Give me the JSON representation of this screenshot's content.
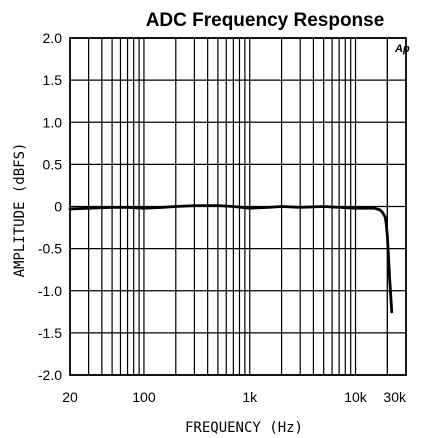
{
  "chart_data": {
    "type": "line",
    "title": "ADC Frequency Response",
    "xlabel": "FREQUENCY (Hz)",
    "ylabel": "AMPLITUDE (dBFS)",
    "x_scale": "log",
    "xlim": [
      20,
      30000
    ],
    "ylim": [
      -2.0,
      2.0
    ],
    "grid": true,
    "x_ticks": [
      {
        "value": 20,
        "label": "20"
      },
      {
        "value": 100,
        "label": "100"
      },
      {
        "value": 1000,
        "label": "1k"
      },
      {
        "value": 10000,
        "label": "10k"
      },
      {
        "value": 30000,
        "label": "30k"
      }
    ],
    "y_ticks": [
      {
        "value": 2.0,
        "label": "2.0"
      },
      {
        "value": 1.5,
        "label": "1.5"
      },
      {
        "value": 1.0,
        "label": "1.0"
      },
      {
        "value": 0.5,
        "label": "0.5"
      },
      {
        "value": 0,
        "label": "0"
      },
      {
        "value": -0.5,
        "label": "-0.5"
      },
      {
        "value": -1.0,
        "label": "-1.0"
      },
      {
        "value": -1.5,
        "label": "-1.5"
      },
      {
        "value": -2.0,
        "label": "-2.0"
      }
    ],
    "series": [
      {
        "color": "#000000",
        "x": [
          20,
          30,
          50,
          70,
          100,
          150,
          200,
          300,
          500,
          700,
          1000,
          1500,
          2000,
          3000,
          5000,
          7000,
          10000,
          12000,
          14000,
          15000,
          16000,
          17000,
          18000,
          19000,
          19500,
          20000,
          20500,
          21000,
          21500,
          22000
        ],
        "y": [
          -0.03,
          -0.02,
          -0.01,
          -0.01,
          -0.02,
          -0.01,
          0.0,
          0.01,
          0.01,
          0.0,
          -0.02,
          -0.01,
          0.0,
          -0.01,
          0.0,
          -0.01,
          -0.02,
          -0.02,
          -0.02,
          -0.02,
          -0.03,
          -0.04,
          -0.07,
          -0.12,
          -0.2,
          -0.35,
          -0.6,
          -0.85,
          -1.05,
          -1.25
        ]
      }
    ],
    "badge": "Ap",
    "background": "#ffffff",
    "grid_color": "#000000"
  }
}
